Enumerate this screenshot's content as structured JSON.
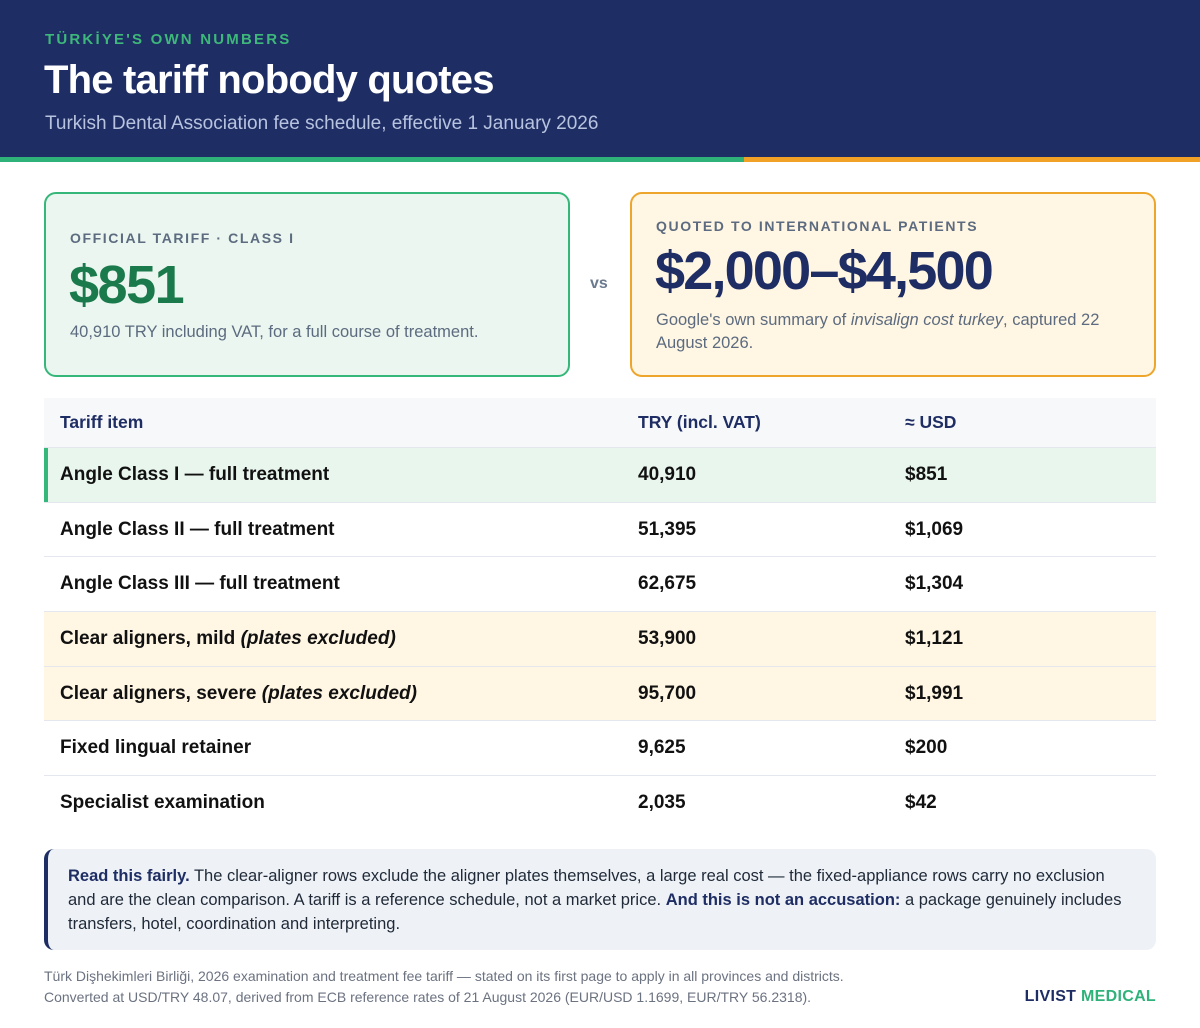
{
  "header": {
    "kicker": "TÜRKİYE'S OWN NUMBERS",
    "title": "The tariff nobody quotes",
    "subtitle": "Turkish Dental Association fee schedule, effective 1 January 2026"
  },
  "official_card": {
    "label": "OFFICIAL TARIFF · CLASS I",
    "amount": "$851",
    "note": "40,910 TRY including VAT, for a full course of treatment."
  },
  "vs_label": "vs",
  "quoted_card": {
    "label": "QUOTED TO INTERNATIONAL PATIENTS",
    "amount": "$2,000–$4,500",
    "note_pre": "Google's own summary of ",
    "note_em": "invisalign cost turkey",
    "note_post": ", captured 22 August 2026."
  },
  "table": {
    "headers": [
      "Tariff item",
      "TRY (incl. VAT)",
      "≈ USD"
    ],
    "rows": [
      {
        "item": "Angle Class I — full treatment",
        "note": "",
        "try": "40,910",
        "usd": "$851",
        "highlight": "green"
      },
      {
        "item": "Angle Class II — full treatment",
        "note": "",
        "try": "51,395",
        "usd": "$1,069",
        "highlight": ""
      },
      {
        "item": "Angle Class III — full treatment",
        "note": "",
        "try": "62,675",
        "usd": "$1,304",
        "highlight": ""
      },
      {
        "item": "Clear aligners, mild ",
        "note": "(plates excluded)",
        "try": "53,900",
        "usd": "$1,121",
        "highlight": "amber"
      },
      {
        "item": "Clear aligners, severe ",
        "note": "(plates excluded)",
        "try": "95,700",
        "usd": "$1,991",
        "highlight": "amber"
      },
      {
        "item": "Fixed lingual retainer",
        "note": "",
        "try": "9,625",
        "usd": "$200",
        "highlight": ""
      },
      {
        "item": "Specialist examination",
        "note": "",
        "try": "2,035",
        "usd": "$42",
        "highlight": ""
      }
    ]
  },
  "callout": {
    "lead": "Read this fairly.",
    "body1": " The clear-aligner rows exclude the aligner plates themselves, a large real cost — the fixed-appliance rows carry no exclusion and are the clean comparison. A tariff is a reference schedule, not a market price. ",
    "emph": "And this is not an accusation:",
    "body2": " a package genuinely includes transfers, hotel, coordination and interpreting."
  },
  "source": {
    "line1": "Türk Dişhekimleri Birliği, 2026 examination and treatment fee tariff — stated on its first page to apply in all provinces and districts.",
    "line2": "Converted at USD/TRY 48.07, derived from ECB reference rates of 21 August 2026 (EUR/USD 1.1699, EUR/TRY 56.2318)."
  },
  "brand": {
    "part1": "LIVIST",
    "part2": "MEDICAL"
  },
  "colors": {
    "navy": "#1e2d63",
    "green": "#2fb27a",
    "orange": "#f0a126"
  }
}
